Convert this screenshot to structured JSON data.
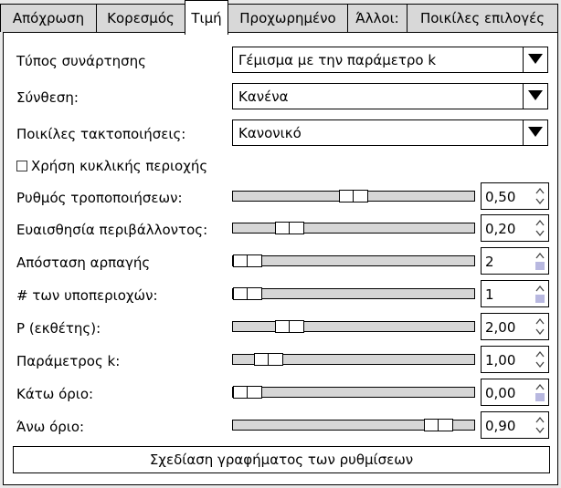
{
  "tabs": [
    {
      "label": "Απόχρωση"
    },
    {
      "label": "Κορεσμός"
    },
    {
      "label": "Τιμή"
    },
    {
      "label": "Προχωρημένο"
    },
    {
      "label": "Άλλοι:"
    },
    {
      "label": "Ποικίλες επιλογές"
    }
  ],
  "active_tab": "Τιμή",
  "settings": {
    "function_type": {
      "label": "Τύπος συνάρτησης",
      "value": "Γέμισμα με την παράμετρο k"
    },
    "composition": {
      "label": "Σύνθεση:",
      "value": "Κανένα"
    },
    "misc_sort": {
      "label": "Ποικίλες τακτοποιήσεις:",
      "value": "Κανονικό"
    },
    "use_circular": {
      "label": "Χρήση κυκλικής περιοχής",
      "checked": false
    }
  },
  "sliders": [
    {
      "label": "Ρυθμός τροποποιήσεων:",
      "value": "0,50",
      "fraction": 0.5
    },
    {
      "label": "Ευαισθησία περιβάλλοντος:",
      "value": "0,20",
      "fraction": 0.2
    },
    {
      "label": "Απόσταση αρπαγής",
      "value": "2",
      "fraction": 0.0
    },
    {
      "label": "# των υποπεριοχών:",
      "value": "1",
      "fraction": 0.0
    },
    {
      "label": "P (εκθέτης):",
      "value": "2,00",
      "fraction": 0.2
    },
    {
      "label": "Παράμετρος k:",
      "value": "1,00",
      "fraction": 0.1
    },
    {
      "label": "Κάτω όριο:",
      "value": "0,00",
      "fraction": 0.0
    },
    {
      "label": "Άνω όριο:",
      "value": "0,90",
      "fraction": 0.9
    }
  ],
  "plot_button": {
    "label": "Σχεδίαση γραφήματος των ρυθμίσεων"
  },
  "colors": {
    "down_arrow_disabled": "#b8b8e0",
    "track": "#d6d6d6"
  }
}
